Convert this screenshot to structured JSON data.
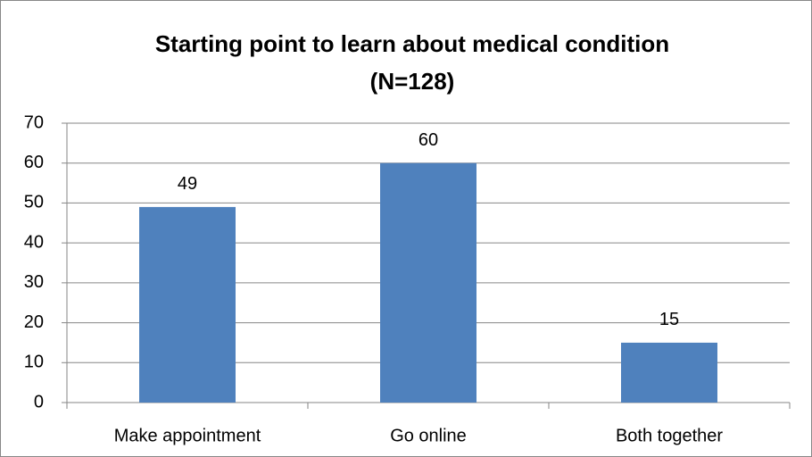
{
  "chart_data": {
    "type": "bar",
    "title": [
      "Starting point to learn about medical condition",
      "(N=128)"
    ],
    "categories": [
      "Make appointment",
      "Go online",
      "Both together"
    ],
    "values": [
      49,
      60,
      15
    ],
    "color": "#4f81bd",
    "ylim": [
      0,
      70
    ],
    "yticks": [
      0,
      10,
      20,
      30,
      40,
      50,
      60,
      70
    ],
    "grid": true,
    "data_labels": true
  }
}
